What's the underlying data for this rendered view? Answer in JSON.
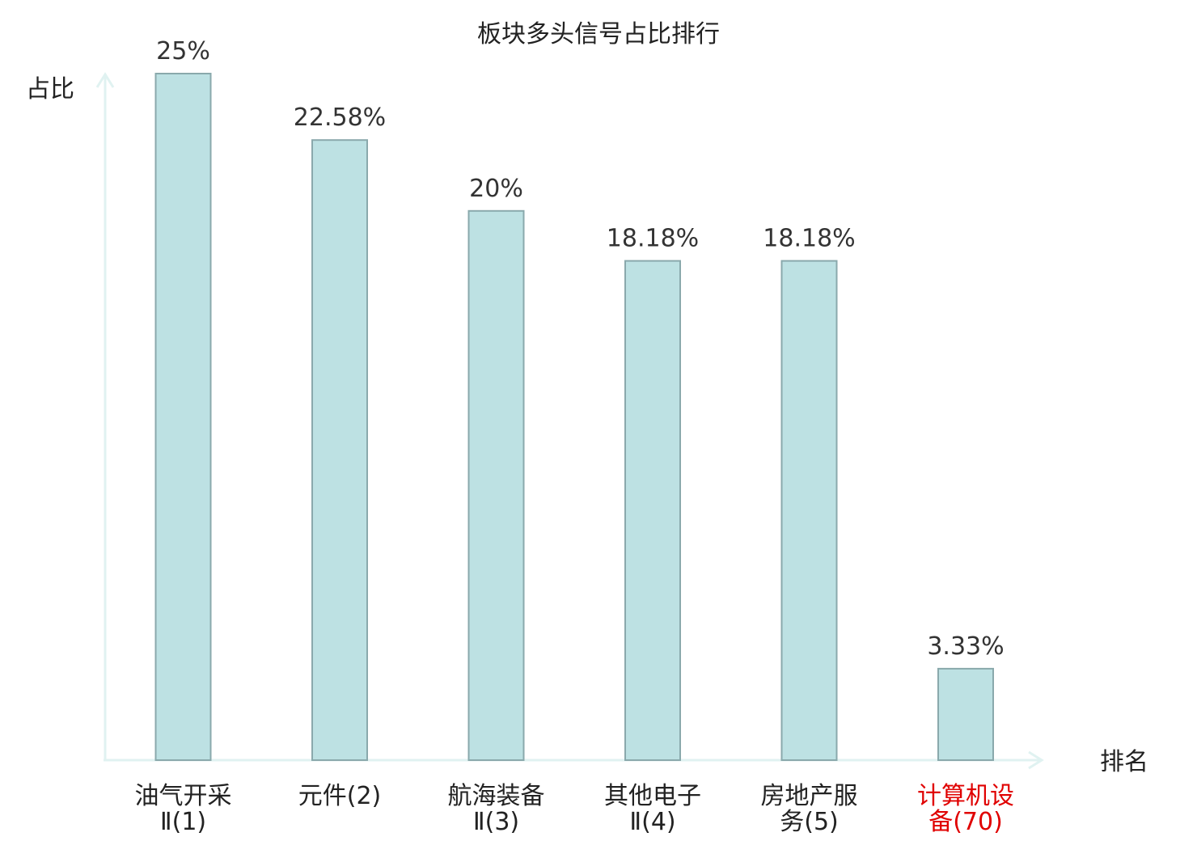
{
  "chart_data": {
    "type": "bar",
    "title": "板块多头信号占比排行",
    "ylabel": "占比",
    "xlabel": "排名",
    "ylim": [
      0,
      25
    ],
    "grid": false,
    "categories": [
      {
        "lines": [
          "油气开采",
          "Ⅱ(1)"
        ],
        "highlight": false
      },
      {
        "lines": [
          "元件(2)"
        ],
        "highlight": false
      },
      {
        "lines": [
          "航海装备",
          "Ⅱ(3)"
        ],
        "highlight": false
      },
      {
        "lines": [
          "其他电子",
          "Ⅱ(4)"
        ],
        "highlight": false
      },
      {
        "lines": [
          "房地产服",
          "务(5)"
        ],
        "highlight": false
      },
      {
        "lines": [
          "计算机设",
          "备(70)"
        ],
        "highlight": true
      }
    ],
    "values": [
      25,
      22.58,
      20,
      18.18,
      18.18,
      3.33
    ],
    "value_labels": [
      "25%",
      "22.58%",
      "20%",
      "18.18%",
      "18.18%",
      "3.33%"
    ],
    "colors": {
      "bar_fill": "#bde1e3",
      "bar_stroke": "#8aa9ac",
      "axis": "#e0f2f1",
      "text": "#222222",
      "highlight": "#e00000"
    }
  }
}
